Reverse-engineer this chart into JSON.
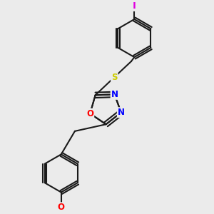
{
  "bg_color": "#ebebeb",
  "bond_color": "#1a1a1a",
  "bond_width": 1.5,
  "atom_colors": {
    "O": "#ff0000",
    "N": "#0000ff",
    "S": "#cccc00",
    "I": "#e000e0",
    "C": "#1a1a1a"
  },
  "font_size_atom": 8.5,
  "dbo_ring": 0.025,
  "dbo_benz": 0.018
}
